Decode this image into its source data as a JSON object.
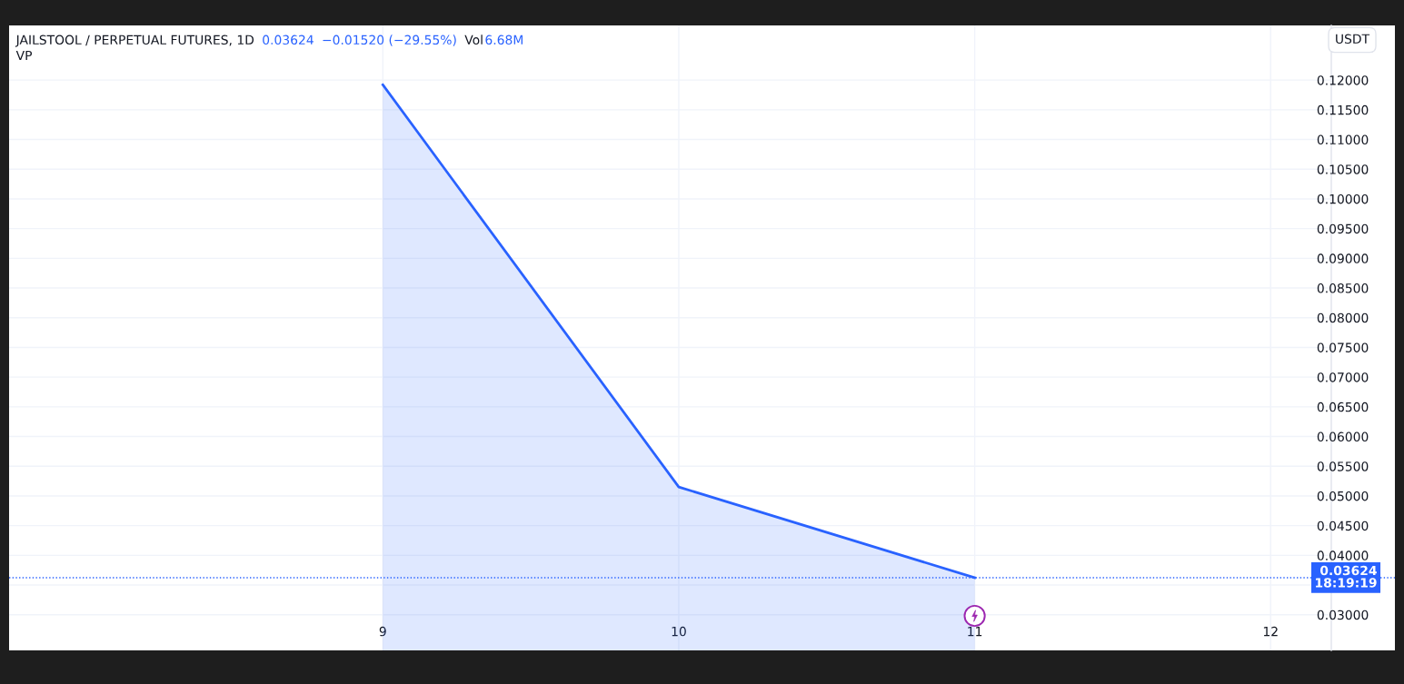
{
  "chart_data": {
    "type": "area",
    "title": "JAILSTOOL / PERPETUAL FUTURES, 1D",
    "annotations": [
      "0.03624",
      "−0.01520 (−29.55%)",
      "Vol",
      "6.68M",
      "VP"
    ],
    "ylabel": "USDT",
    "x": [
      9,
      10,
      11
    ],
    "series": [
      {
        "color": "#2962ff",
        "values": [
          0.1192,
          0.0515,
          0.03624
        ]
      }
    ],
    "xlim": [
      7.737,
      12.42
    ],
    "xticks": [
      9,
      10,
      11,
      12
    ],
    "ylim": [
      0.024,
      0.1292
    ],
    "yticks": [
      {
        "value": 0.03,
        "label": "0.03000"
      },
      {
        "value": 0.035,
        "label": null
      },
      {
        "value": 0.04,
        "label": "0.04000"
      },
      {
        "value": 0.045,
        "label": "0.04500"
      },
      {
        "value": 0.05,
        "label": "0.05000"
      },
      {
        "value": 0.055,
        "label": "0.05500"
      },
      {
        "value": 0.06,
        "label": "0.06000"
      },
      {
        "value": 0.065,
        "label": "0.06500"
      },
      {
        "value": 0.07,
        "label": "0.07000"
      },
      {
        "value": 0.075,
        "label": "0.07500"
      },
      {
        "value": 0.08,
        "label": "0.08000"
      },
      {
        "value": 0.085,
        "label": "0.08500"
      },
      {
        "value": 0.09,
        "label": "0.09000"
      },
      {
        "value": 0.095,
        "label": "0.09500"
      },
      {
        "value": 0.1,
        "label": "0.10000"
      },
      {
        "value": 0.105,
        "label": "0.10500"
      },
      {
        "value": 0.11,
        "label": "0.11000"
      },
      {
        "value": 0.115,
        "label": "0.11500"
      },
      {
        "value": 0.12,
        "label": "0.12000"
      }
    ],
    "ref_lines": [
      {
        "axis": "y",
        "value": 0.03624,
        "label": "0.03624\n18:19:19",
        "color": "#2962ff",
        "line_style": "dotted"
      }
    ],
    "grid": true,
    "marker": "none",
    "line_style": "solid"
  }
}
